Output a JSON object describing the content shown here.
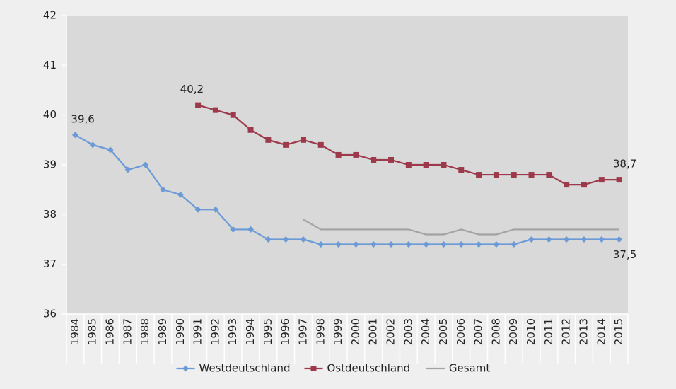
{
  "chart_data": {
    "type": "line",
    "categories": [
      "1984",
      "1985",
      "1986",
      "1987",
      "1988",
      "1989",
      "1990",
      "1991",
      "1992",
      "1993",
      "1994",
      "1995",
      "1996",
      "1997",
      "1998",
      "1999",
      "2000",
      "2001",
      "2002",
      "2003",
      "2004",
      "2005",
      "2006",
      "2007",
      "2008",
      "2009",
      "2010",
      "2011",
      "2012",
      "2013",
      "2014",
      "2015"
    ],
    "series": [
      {
        "name": "Westdeutschland",
        "color": "#6b9ad6",
        "marker": "diamond",
        "values": [
          39.6,
          39.4,
          39.3,
          38.9,
          39.0,
          38.5,
          38.4,
          38.1,
          38.1,
          37.7,
          37.7,
          37.5,
          37.5,
          37.5,
          37.4,
          37.4,
          37.4,
          37.4,
          37.4,
          37.4,
          37.4,
          37.4,
          37.4,
          37.4,
          37.4,
          37.4,
          37.5,
          37.5,
          37.5,
          37.5,
          37.5,
          37.5
        ],
        "value_labels": [
          "39,6",
          null,
          null,
          null,
          null,
          null,
          null,
          null,
          null,
          null,
          null,
          null,
          null,
          null,
          null,
          null,
          null,
          null,
          null,
          null,
          null,
          null,
          null,
          null,
          null,
          null,
          null,
          null,
          null,
          null,
          null,
          "37,5"
        ]
      },
      {
        "name": "Ostdeutschland",
        "color": "#9c3a4c",
        "marker": "square",
        "values": [
          null,
          null,
          null,
          null,
          null,
          null,
          null,
          40.2,
          40.1,
          40.0,
          39.7,
          39.5,
          39.4,
          39.5,
          39.4,
          39.2,
          39.2,
          39.1,
          39.1,
          39.0,
          39.0,
          39.0,
          38.9,
          38.8,
          38.8,
          38.8,
          38.8,
          38.8,
          38.6,
          38.6,
          38.7,
          38.7
        ],
        "value_labels": [
          null,
          null,
          null,
          null,
          null,
          null,
          null,
          "40,2",
          null,
          null,
          null,
          null,
          null,
          null,
          null,
          null,
          null,
          null,
          null,
          null,
          null,
          null,
          null,
          null,
          null,
          null,
          null,
          null,
          null,
          null,
          null,
          "38,7"
        ]
      },
      {
        "name": "Gesamt",
        "color": "#a3a3a3",
        "marker": "none",
        "values": [
          null,
          null,
          null,
          null,
          null,
          null,
          null,
          null,
          null,
          null,
          null,
          null,
          null,
          37.9,
          37.7,
          37.7,
          37.7,
          37.7,
          37.7,
          37.7,
          37.6,
          37.6,
          37.7,
          37.6,
          37.6,
          37.7,
          37.7,
          37.7,
          37.7,
          37.7,
          37.7,
          37.7
        ]
      }
    ],
    "ylim": [
      36,
      42
    ],
    "yticks": [
      36,
      37,
      38,
      39,
      40,
      41,
      42
    ],
    "grid": false,
    "legend": "bottom"
  }
}
